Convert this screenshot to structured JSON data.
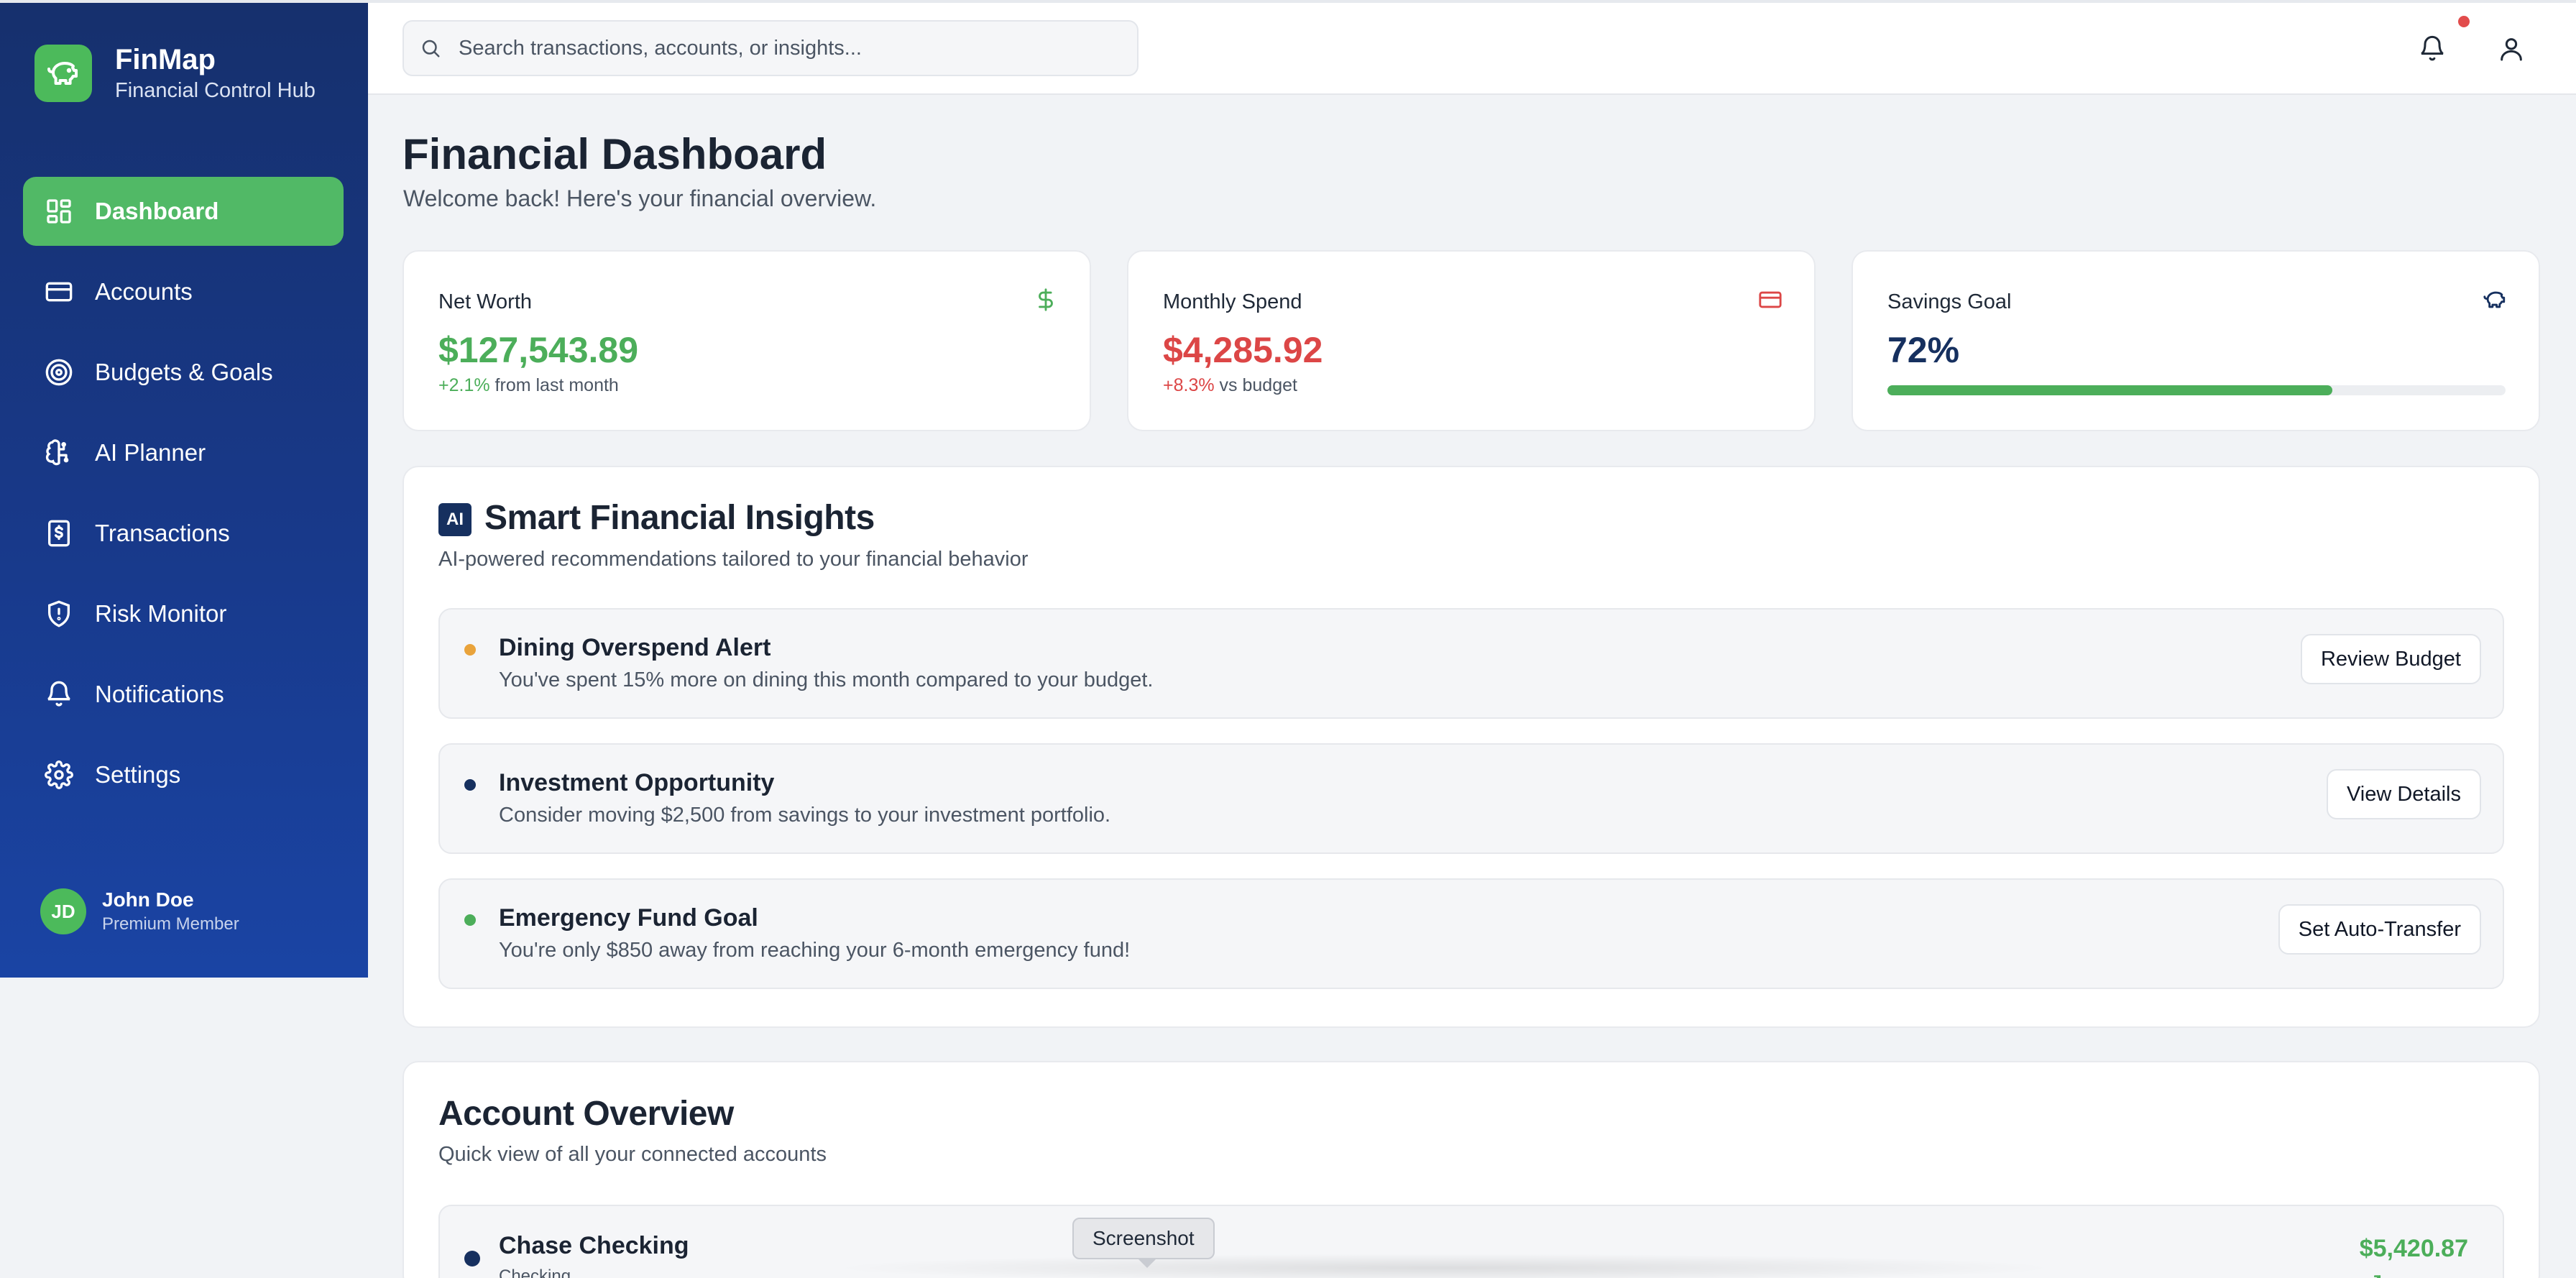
{
  "brand": {
    "name": "FinMap",
    "subtitle": "Financial Control Hub",
    "logo_icon": "piggy-bank-icon"
  },
  "sidebar": {
    "items": [
      {
        "label": "Dashboard",
        "icon": "grid-icon",
        "active": true
      },
      {
        "label": "Accounts",
        "icon": "card-icon",
        "active": false
      },
      {
        "label": "Budgets & Goals",
        "icon": "target-icon",
        "active": false
      },
      {
        "label": "AI Planner",
        "icon": "brain-icon",
        "active": false
      },
      {
        "label": "Transactions",
        "icon": "dollar-receipt-icon",
        "active": false
      },
      {
        "label": "Risk Monitor",
        "icon": "shield-icon",
        "active": false
      },
      {
        "label": "Notifications",
        "icon": "bell-icon",
        "active": false
      },
      {
        "label": "Settings",
        "icon": "gear-icon",
        "active": false
      }
    ],
    "user": {
      "initials": "JD",
      "name": "John Doe",
      "tier": "Premium Member"
    }
  },
  "header": {
    "search_placeholder": "Search transactions, accounts, or insights...",
    "has_unread_notifications": true
  },
  "page": {
    "title": "Financial Dashboard",
    "subtitle": "Welcome back! Here's your financial overview."
  },
  "stats": {
    "net_worth": {
      "label": "Net Worth",
      "value": "$127,543.89",
      "change": "+2.1%",
      "suffix": "from last month",
      "icon": "dollar-icon"
    },
    "monthly_spend": {
      "label": "Monthly Spend",
      "value": "$4,285.92",
      "change": "+8.3%",
      "suffix": "vs budget",
      "icon": "credit-card-icon"
    },
    "savings_goal": {
      "label": "Savings Goal",
      "value": "72%",
      "progress": 0.72,
      "icon": "piggy-bank-icon"
    }
  },
  "insights": {
    "badge": "AI",
    "title": "Smart Financial Insights",
    "subtitle": "AI-powered recommendations tailored to your financial behavior",
    "items": [
      {
        "title": "Dining Overspend Alert",
        "text": "You've spent 15% more on dining this month compared to your budget.",
        "action": "Review Budget",
        "dot_color": "#e9a33b"
      },
      {
        "title": "Investment Opportunity",
        "text": "Consider moving $2,500 from savings to your investment portfolio.",
        "action": "View Details",
        "dot_color": "#16305f"
      },
      {
        "title": "Emergency Fund Goal",
        "text": "You're only $850 away from reaching your 6-month emergency fund!",
        "action": "Set Auto-Transfer",
        "dot_color": "#4cae5a"
      }
    ]
  },
  "accounts": {
    "title": "Account Overview",
    "subtitle": "Quick view of all your connected accounts",
    "items": [
      {
        "name": "Chase Checking",
        "type": "Checking",
        "balance": "$5,420.87"
      }
    ]
  },
  "tooltip": {
    "label": "Screenshot"
  }
}
